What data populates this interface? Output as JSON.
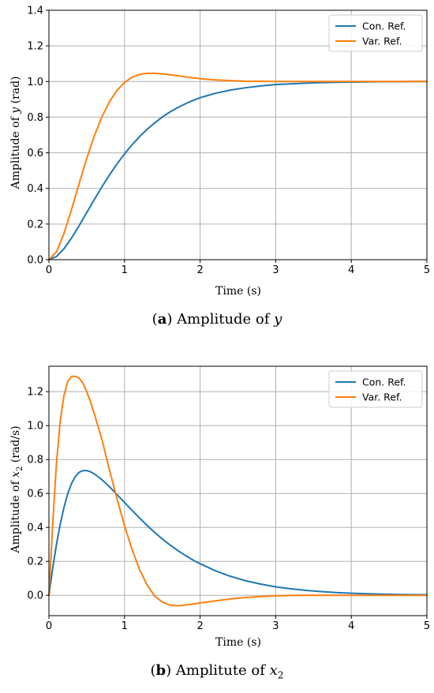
{
  "chart_data": [
    {
      "type": "line",
      "xlabel": "Time (s)",
      "ylabel": "Amplitude of y (rad)",
      "xlim": [
        0,
        5
      ],
      "ylim": [
        0,
        1.4
      ],
      "xticks": [
        "0",
        "1",
        "2",
        "3",
        "4",
        "5"
      ],
      "yticks": [
        "0.0",
        "0.2",
        "0.4",
        "0.6",
        "0.8",
        "1.0",
        "1.2",
        "1.4"
      ],
      "grid": true,
      "legend_position": "top-right",
      "x": [
        0,
        0.1,
        0.2,
        0.3,
        0.4,
        0.5,
        0.6,
        0.7,
        0.8,
        0.9,
        1.0,
        1.1,
        1.2,
        1.3,
        1.4,
        1.5,
        1.6,
        1.7,
        1.8,
        1.9,
        2.0,
        2.2,
        2.4,
        2.6,
        2.8,
        3.0,
        3.2,
        3.4,
        3.6,
        3.8,
        4.0,
        4.2,
        4.4,
        4.6,
        4.8,
        5.0
      ],
      "series": [
        {
          "name": "Con. Ref.",
          "color": "#1f77b4",
          "values": [
            0.0,
            0.018,
            0.062,
            0.122,
            0.191,
            0.264,
            0.337,
            0.408,
            0.475,
            0.537,
            0.594,
            0.645,
            0.691,
            0.732,
            0.768,
            0.801,
            0.829,
            0.853,
            0.874,
            0.893,
            0.909,
            0.934,
            0.952,
            0.965,
            0.975,
            0.983,
            0.987,
            0.991,
            0.994,
            0.996,
            0.997,
            0.998,
            0.999,
            0.999,
            1.0,
            1.0
          ]
        },
        {
          "name": "Var. Ref.",
          "color": "#ff7f0e",
          "values": [
            0.0,
            0.044,
            0.148,
            0.283,
            0.428,
            0.568,
            0.694,
            0.801,
            0.886,
            0.95,
            0.995,
            1.024,
            1.04,
            1.046,
            1.046,
            1.043,
            1.038,
            1.033,
            1.027,
            1.021,
            1.016,
            1.009,
            1.005,
            1.002,
            1.001,
            1.0,
            1.0,
            1.0,
            1.0,
            1.0,
            1.0,
            1.0,
            1.0,
            1.0,
            1.0,
            1.0
          ]
        }
      ]
    },
    {
      "type": "line",
      "xlabel": "Time (s)",
      "ylabel": "Amplitude of x2 (rad/s)",
      "xlim": [
        0,
        5
      ],
      "ylim": [
        -0.12,
        1.35
      ],
      "xticks": [
        "0",
        "1",
        "2",
        "3",
        "4",
        "5"
      ],
      "yticks": [
        "0.0",
        "0.2",
        "0.4",
        "0.6",
        "0.8",
        "1.0",
        "1.2"
      ],
      "grid": true,
      "legend_position": "top-right",
      "x": [
        0,
        0.05,
        0.1,
        0.15,
        0.2,
        0.25,
        0.3,
        0.35,
        0.4,
        0.45,
        0.5,
        0.55,
        0.6,
        0.7,
        0.8,
        0.9,
        1.0,
        1.1,
        1.2,
        1.3,
        1.4,
        1.5,
        1.6,
        1.7,
        1.8,
        1.9,
        2.0,
        2.2,
        2.4,
        2.6,
        2.8,
        3.0,
        3.2,
        3.4,
        3.6,
        3.8,
        4.0,
        4.2,
        4.4,
        4.6,
        4.8,
        5.0
      ],
      "series": [
        {
          "name": "Con. Ref.",
          "color": "#1f77b4",
          "values": [
            0.0,
            0.16,
            0.3,
            0.42,
            0.52,
            0.6,
            0.66,
            0.7,
            0.725,
            0.735,
            0.735,
            0.728,
            0.715,
            0.682,
            0.64,
            0.594,
            0.547,
            0.5,
            0.455,
            0.411,
            0.37,
            0.332,
            0.297,
            0.265,
            0.236,
            0.209,
            0.186,
            0.145,
            0.112,
            0.086,
            0.066,
            0.05,
            0.038,
            0.029,
            0.022,
            0.016,
            0.012,
            0.009,
            0.007,
            0.005,
            0.004,
            0.003
          ]
        },
        {
          "name": "Var. Ref.",
          "color": "#ff7f0e",
          "values": [
            0.0,
            0.42,
            0.78,
            1.03,
            1.18,
            1.26,
            1.29,
            1.29,
            1.28,
            1.25,
            1.2,
            1.14,
            1.07,
            0.92,
            0.74,
            0.57,
            0.41,
            0.27,
            0.15,
            0.06,
            -0.005,
            -0.04,
            -0.058,
            -0.062,
            -0.058,
            -0.052,
            -0.045,
            -0.033,
            -0.022,
            -0.013,
            -0.007,
            -0.003,
            -0.001,
            0.0,
            0.0,
            0.0,
            0.0,
            0.0,
            0.0,
            0.0,
            0.0,
            0.0
          ]
        }
      ]
    }
  ],
  "captions": {
    "a_label": "a",
    "a_text": "Amplitude of",
    "a_var": "y",
    "b_label": "b",
    "b_text": "Amplitute of",
    "b_var": "x",
    "b_sub": "2"
  },
  "ylabels": {
    "a_prefix": "Amplitude of ",
    "a_var": "y",
    "a_suffix": " (rad)",
    "b_prefix": "Amplitude of ",
    "b_var": "x",
    "b_sub": "2",
    "b_suffix": " (rad/s)"
  }
}
